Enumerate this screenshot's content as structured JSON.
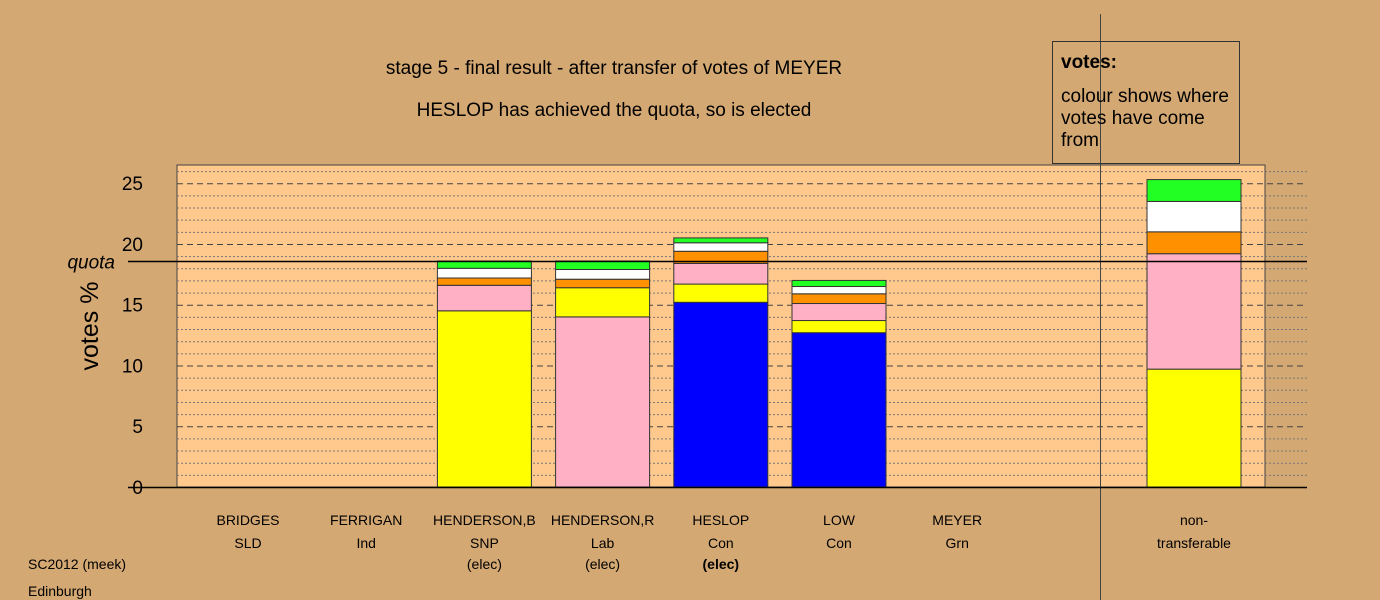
{
  "chart_data": {
    "type": "bar",
    "stacked": true,
    "title": "stage 5 - final result - after transfer of votes of MEYER",
    "subtitle": "HESLOP has achieved the quota, so is elected",
    "ylabel": "votes %",
    "ylim": [
      0,
      26.5
    ],
    "yticks": [
      0,
      5,
      10,
      15,
      20,
      25
    ],
    "quota": 18.6,
    "quota_label": "quota",
    "candidates": [
      {
        "name": "BRIDGES",
        "party": "SLD",
        "status": "",
        "status_bold": false,
        "segments": []
      },
      {
        "name": "FERRIGAN",
        "party": "Ind",
        "status": "",
        "status_bold": false,
        "segments": []
      },
      {
        "name": "HENDERSON,B",
        "party": "SNP",
        "status": "(elec)",
        "status_bold": false,
        "segments": [
          {
            "color": "#ffff00",
            "value": 14.5
          },
          {
            "color": "#ffb0c4",
            "value": 2.1
          },
          {
            "color": "#ff9000",
            "value": 0.6
          },
          {
            "color": "#ffffff",
            "value": 0.8
          },
          {
            "color": "#22ff22",
            "value": 0.6
          }
        ]
      },
      {
        "name": "HENDERSON,R",
        "party": "Lab",
        "status": "(elec)",
        "status_bold": false,
        "segments": [
          {
            "color": "#ffb0c4",
            "value": 14.0
          },
          {
            "color": "#ffff00",
            "value": 2.4
          },
          {
            "color": "#ff9000",
            "value": 0.7
          },
          {
            "color": "#ffffff",
            "value": 0.8
          },
          {
            "color": "#22ff22",
            "value": 0.7
          }
        ]
      },
      {
        "name": "HESLOP",
        "party": "Con",
        "status": "(elec)",
        "status_bold": true,
        "segments": [
          {
            "color": "#0000ff",
            "value": 15.2
          },
          {
            "color": "#ffff00",
            "value": 1.5
          },
          {
            "color": "#ffb0c4",
            "value": 1.7
          },
          {
            "color": "#ff9000",
            "value": 1.0
          },
          {
            "color": "#ffffff",
            "value": 0.7
          },
          {
            "color": "#22ff22",
            "value": 0.4
          }
        ]
      },
      {
        "name": "LOW",
        "party": "Con",
        "status": "",
        "status_bold": false,
        "segments": [
          {
            "color": "#0000ff",
            "value": 12.7
          },
          {
            "color": "#ffff00",
            "value": 1.0
          },
          {
            "color": "#ffb0c4",
            "value": 1.4
          },
          {
            "color": "#ff9000",
            "value": 0.8
          },
          {
            "color": "#ffffff",
            "value": 0.6
          },
          {
            "color": "#22ff22",
            "value": 0.5
          }
        ]
      },
      {
        "name": "MEYER",
        "party": "Grn",
        "status": "",
        "status_bold": false,
        "segments": []
      }
    ],
    "nontransferable": {
      "label_line1": "non-",
      "label_line2": "transferable",
      "segments": [
        {
          "color": "#ffff00",
          "value": 9.7
        },
        {
          "color": "#ffb0c4",
          "value": 9.5
        },
        {
          "color": "#ff9000",
          "value": 1.8
        },
        {
          "color": "#ffffff",
          "value": 2.5
        },
        {
          "color": "#22ff22",
          "value": 1.8
        }
      ]
    }
  },
  "legend": {
    "title": "votes:",
    "text": "colour shows where votes have come from"
  },
  "footer": {
    "line1": "SC2012 (meek)",
    "line2": "Edinburgh"
  },
  "colors": {
    "background": "#d4a872",
    "plot_panel": "#ffc88c"
  }
}
